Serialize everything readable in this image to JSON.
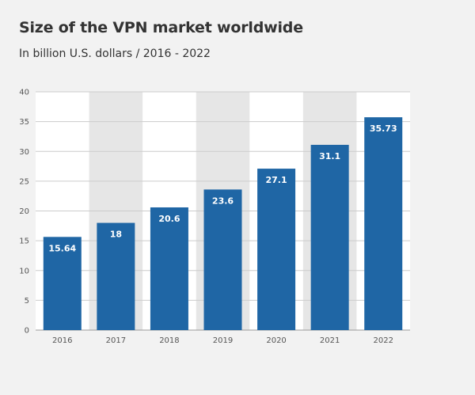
{
  "chart_data": {
    "type": "bar",
    "title": "Size of the VPN market worldwide",
    "subtitle": "In billion U.S. dollars / 2016 - 2022",
    "categories": [
      "2016",
      "2017",
      "2018",
      "2019",
      "2020",
      "2021",
      "2022"
    ],
    "values": [
      15.64,
      18,
      20.6,
      23.6,
      27.1,
      31.1,
      35.73
    ],
    "data_labels": [
      "15.64",
      "18",
      "20.6",
      "23.6",
      "27.1",
      "31.1",
      "35.73"
    ],
    "yticks": [
      "0",
      "5",
      "10",
      "15",
      "20",
      "25",
      "30",
      "35",
      "40"
    ],
    "ylim": [
      0,
      40
    ],
    "xlabel": "",
    "ylabel": "",
    "grid": true,
    "legend": "none",
    "colors": {
      "bar": "#1f66a5",
      "band": "#e6e6e6",
      "plot_bg": "#ffffff",
      "page_bg": "#f2f2f2",
      "grid": "#cccccc",
      "axis": "#999999"
    }
  }
}
